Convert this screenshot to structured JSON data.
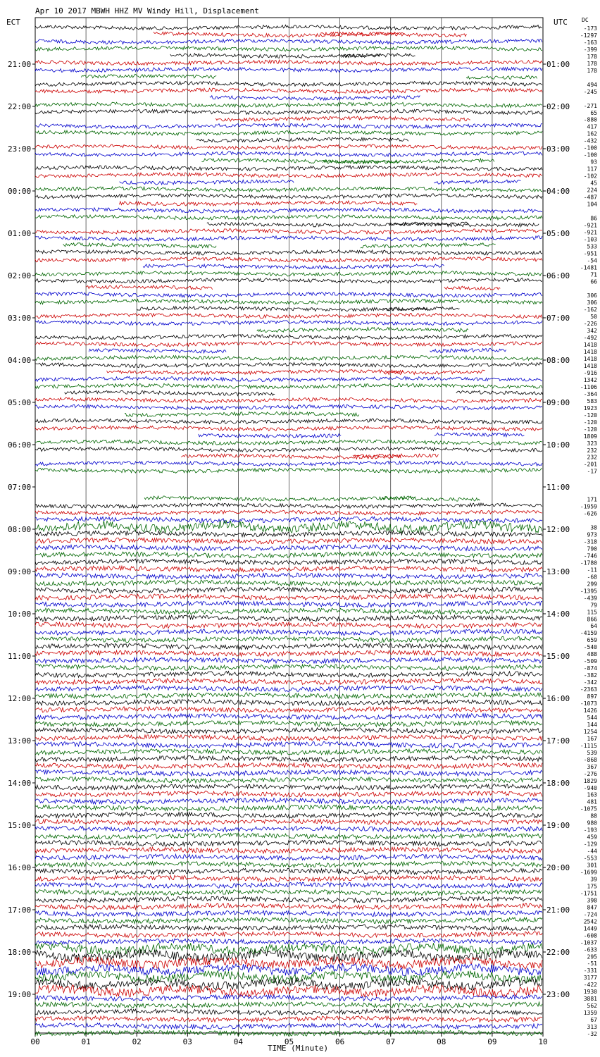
{
  "header": {
    "title": "Apr 10 2017 MBWH HHZ MV Windy Hill, Displacement",
    "left_axis_label": "ECT",
    "right_axis_label": "UTC",
    "dc_label": "DC"
  },
  "chart_data": {
    "type": "line",
    "title": "Apr 10 2017 MBWH HHZ MV Windy Hill, Displacement",
    "xlabel": "TIME (Minute)",
    "x_ticks": [
      "00",
      "01",
      "02",
      "03",
      "04",
      "05",
      "06",
      "07",
      "08",
      "09",
      "10"
    ],
    "xlim": [
      0,
      10
    ],
    "grid": "vertical lines at each minute",
    "left_hour_labels": [
      "21:00",
      "22:00",
      "23:00",
      "00:00",
      "01:00",
      "02:00",
      "03:00",
      "04:00",
      "05:00",
      "06:00",
      "07:00",
      "08:00",
      "09:00",
      "10:00",
      "11:00",
      "12:00",
      "13:00",
      "14:00",
      "15:00",
      "16:00",
      "17:00",
      "18:00",
      "19:00"
    ],
    "right_hour_labels": [
      "01:00",
      "02:00",
      "03:00",
      "04:00",
      "05:00",
      "06:00",
      "07:00",
      "08:00",
      "09:00",
      "10:00",
      "11:00",
      "12:00",
      "13:00",
      "14:00",
      "15:00",
      "16:00",
      "17:00",
      "18:00",
      "19:00",
      "20:00",
      "21:00",
      "22:00",
      "23:00"
    ],
    "trace_colors": [
      "#000000",
      "#cc0000",
      "#0000cc",
      "#006600"
    ],
    "dc_offsets": [
      -173,
      -1297,
      -163,
      -399,
      178,
      178,
      178,
      null,
      494,
      -245,
      null,
      -271,
      65,
      -880,
      417,
      162,
      -432,
      -100,
      -100,
      93,
      117,
      -102,
      45,
      224,
      -487,
      104,
      null,
      86,
      -921,
      -921,
      -103,
      533,
      -951,
      -54,
      -1481,
      71,
      66,
      null,
      306,
      306,
      -162,
      50,
      -226,
      342,
      -492,
      1418,
      1418,
      1418,
      1418,
      -916,
      1342,
      -1106,
      -364,
      583,
      1923,
      -120,
      -120,
      -120,
      1809,
      323,
      232,
      232,
      -201,
      -17,
      null,
      null,
      null,
      171,
      -1959,
      -626,
      null,
      38,
      973,
      -318,
      790,
      -746,
      -1780,
      -11,
      -68,
      299,
      -1395,
      -439,
      79,
      115,
      866,
      64,
      -4159,
      659,
      -540,
      488,
      -509,
      -874,
      -382,
      -342,
      -2363,
      897,
      -1073,
      1426,
      544,
      144,
      1254,
      167,
      -1115,
      539,
      -868,
      367,
      -276,
      1829,
      -940,
      163,
      481,
      -1075,
      88,
      980,
      -193,
      459,
      -129,
      -44,
      -553,
      301,
      -1699,
      39,
      175,
      -1751,
      398,
      847,
      -724,
      2542,
      1449,
      -608,
      -1037,
      -633,
      295,
      -51,
      -331,
      3177,
      -422,
      1930,
      3881,
      562,
      1359,
      67,
      313,
      -32
    ]
  }
}
